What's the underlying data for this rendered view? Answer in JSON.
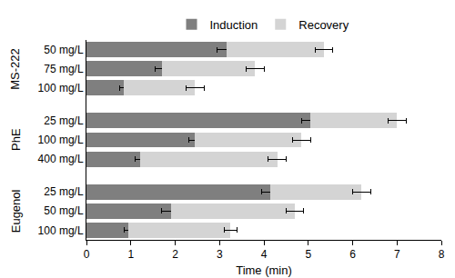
{
  "chart_data": {
    "type": "bar",
    "orientation": "horizontal",
    "stacked": true,
    "x_label": "Time (min)",
    "categories": [
      "50 mg/L",
      "75 mg/L",
      "100 mg/L",
      "25 mg/L",
      "100 mg/L",
      "400 mg/L",
      "25 mg/L",
      "50 mg/L",
      "100 mg/L"
    ],
    "category_groups": [
      "MS-222",
      "MS-222",
      "MS-222",
      "PhE",
      "PhE",
      "PhE",
      "Eugenol",
      "Eugenol",
      "Eugenol"
    ],
    "series": [
      {
        "name": "Induction",
        "color": "#7f7f7f",
        "values": [
          3.15,
          1.7,
          0.85,
          5.05,
          2.45,
          1.2,
          4.15,
          1.9,
          0.95
        ],
        "errors": [
          0.2,
          0.15,
          0.1,
          0.2,
          0.15,
          0.1,
          0.2,
          0.2,
          0.1
        ]
      },
      {
        "name": "Recovery",
        "color": "#d4d4d4",
        "values": [
          2.2,
          2.1,
          1.6,
          1.95,
          2.4,
          3.1,
          2.05,
          2.8,
          2.3
        ],
        "errors": [
          0.2,
          0.2,
          0.2,
          0.2,
          0.2,
          0.2,
          0.2,
          0.2,
          0.15
        ]
      }
    ],
    "xlim": [
      0,
      8
    ],
    "xticks": [
      0,
      1,
      2,
      3,
      4,
      5,
      6,
      7,
      8
    ],
    "grid": false,
    "legend": "top"
  }
}
